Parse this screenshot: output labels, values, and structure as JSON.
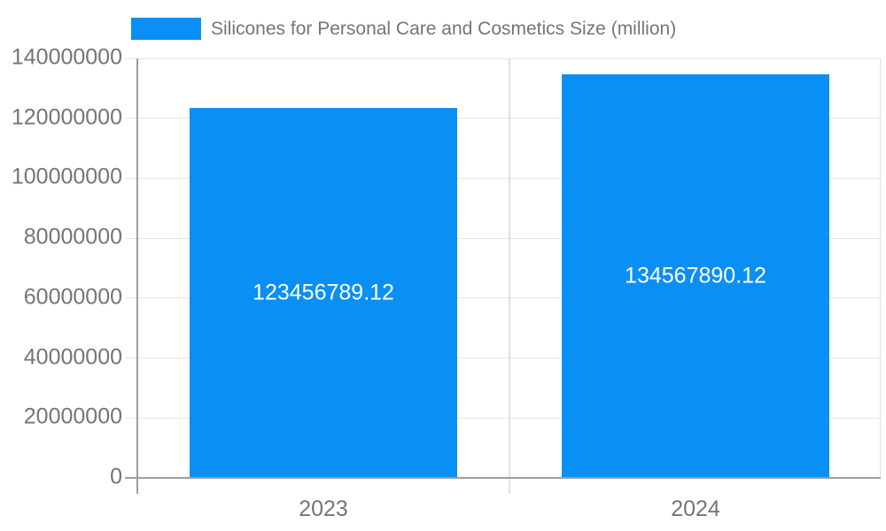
{
  "chart_data": {
    "type": "bar",
    "title": "Silicones for Personal Care and Cosmetics Size (million)",
    "legend_position": "top",
    "categories": [
      "2023",
      "2024"
    ],
    "series": [
      {
        "name": "Silicones for Personal Care and Cosmetics Size (million)",
        "values": [
          123456789.12,
          134567890.12
        ],
        "value_labels": [
          "123456789.12",
          "134567890.12"
        ]
      }
    ],
    "xlabel": "",
    "ylabel": "",
    "ylim": [
      0,
      140000000
    ],
    "yticks": [
      0,
      20000000,
      40000000,
      60000000,
      80000000,
      100000000,
      120000000,
      140000000
    ],
    "ytick_labels": [
      "0",
      "20000000",
      "40000000",
      "60000000",
      "80000000",
      "100000000",
      "120000000",
      "140000000"
    ],
    "grid": true,
    "colors": {
      "bar": "#0a8ff5",
      "bar_value_text": "#ffffff",
      "grid_line": "#e6e6e6",
      "axis_line": "#9e9e9e",
      "separator_line": "#e0e0e0",
      "axis_text": "#757575",
      "background": "#ffffff"
    }
  }
}
